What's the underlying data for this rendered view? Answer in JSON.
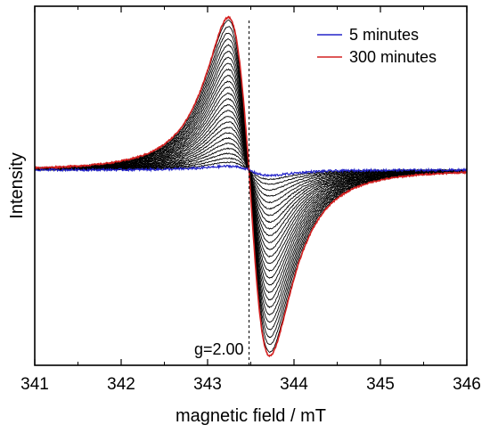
{
  "chart_data": {
    "type": "line",
    "xlabel": "magnetic field / mT",
    "ylabel": "Intensity",
    "xlim": [
      341,
      346
    ],
    "ylim": [
      -1.05,
      0.88
    ],
    "x_ticks": [
      341,
      342,
      343,
      344,
      345,
      346
    ],
    "y_ticks_shown": false,
    "grid": false,
    "legend_position": "top-right",
    "line_model": {
      "shape": "first-derivative Lorentzian",
      "center_mT": 343.48,
      "half_peak_separation_mT": 0.24,
      "baseline": 0
    },
    "series": [
      {
        "name": "5 minutes",
        "color": "#2323c8",
        "peak_max": 0.02,
        "peak_min": -0.03
      },
      {
        "name": "300 minutes",
        "color": "#d42020",
        "peak_max": 0.82,
        "peak_min": -1.0
      }
    ],
    "intermediate_spectra": {
      "color": "#000000",
      "count": 26,
      "amplitude_range": [
        0.05,
        0.98
      ]
    },
    "annotations": [
      {
        "text": "g=2.00",
        "x": 343.48,
        "style": "dashed vertical line"
      }
    ]
  }
}
